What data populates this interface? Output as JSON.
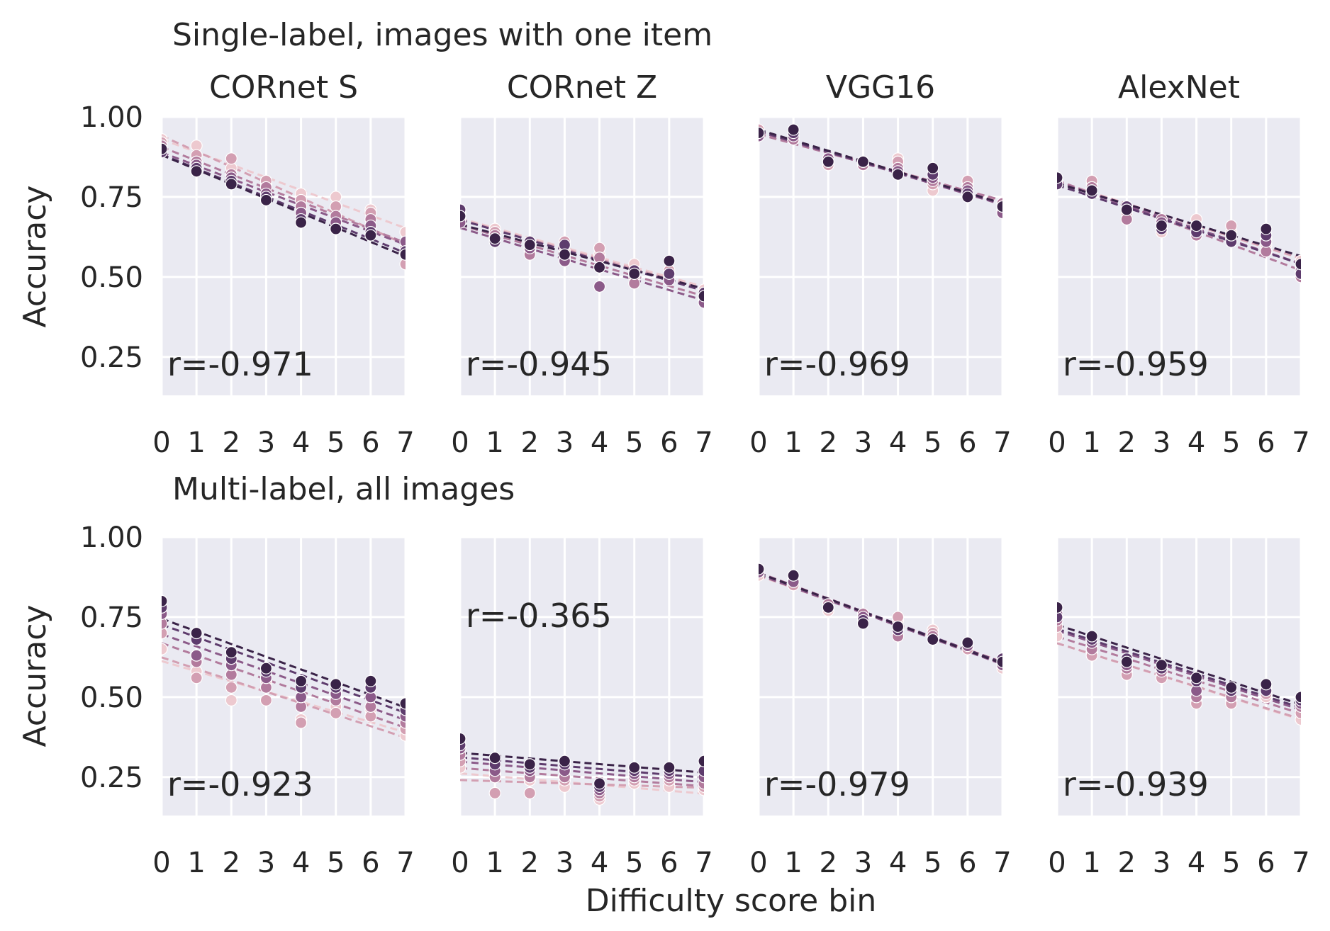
{
  "figure": {
    "xlabel": "Difficulty score bin",
    "ylabel": "Accuracy",
    "row_titles": [
      "Single-label, images with one item",
      "Multi-label, all images"
    ],
    "col_titles": [
      "CORnet S",
      "CORnet Z",
      "VGG16",
      "AlexNet"
    ]
  },
  "style": {
    "panel_bg": "#eaeaf2",
    "grid": "#ffffff",
    "text": "#262626",
    "series_colors": [
      "#edc9cf",
      "#d39fb2",
      "#b27b9d",
      "#8b5a89",
      "#5e3c6d",
      "#3a2348"
    ]
  },
  "chart_data": [
    {
      "type": "scatter",
      "row": 0,
      "col": 0,
      "model": "CORnet S",
      "annotation": "r=-0.971",
      "annotation_pos": "bottom",
      "x": [
        0,
        1,
        2,
        3,
        4,
        5,
        6,
        7
      ],
      "xlim": [
        0,
        7
      ],
      "ylim": [
        0.13,
        1.0
      ],
      "yticks": [
        "1.00",
        "0.75",
        "0.50",
        "0.25"
      ],
      "xticks": [
        "0",
        "1",
        "2",
        "3",
        "4",
        "5",
        "6",
        "7"
      ],
      "series": [
        {
          "values": [
            0.93,
            0.91,
            0.84,
            0.79,
            0.76,
            0.75,
            0.71,
            0.64
          ]
        },
        {
          "values": [
            0.92,
            0.88,
            0.87,
            0.8,
            0.74,
            0.72,
            0.7,
            0.54
          ]
        },
        {
          "values": [
            0.91,
            0.86,
            0.82,
            0.78,
            0.72,
            0.69,
            0.68,
            0.59
          ]
        },
        {
          "values": [
            0.9,
            0.85,
            0.81,
            0.76,
            0.7,
            0.67,
            0.66,
            0.61
          ]
        },
        {
          "values": [
            0.89,
            0.84,
            0.8,
            0.75,
            0.68,
            0.65,
            0.64,
            0.58
          ]
        },
        {
          "values": [
            0.9,
            0.83,
            0.79,
            0.74,
            0.67,
            0.65,
            0.63,
            0.57
          ]
        }
      ]
    },
    {
      "type": "scatter",
      "row": 0,
      "col": 1,
      "model": "CORnet Z",
      "annotation": "r=-0.945",
      "annotation_pos": "bottom",
      "x": [
        0,
        1,
        2,
        3,
        4,
        5,
        6,
        7
      ],
      "xlim": [
        0,
        7
      ],
      "ylim": [
        0.13,
        1.0
      ],
      "yticks": [
        "1.00",
        "0.75",
        "0.50",
        "0.25"
      ],
      "xticks": [
        "0",
        "1",
        "2",
        "3",
        "4",
        "5",
        "6",
        "7"
      ],
      "series": [
        {
          "values": [
            0.7,
            0.65,
            0.6,
            0.58,
            0.57,
            0.54,
            0.51,
            0.46
          ]
        },
        {
          "values": [
            0.69,
            0.64,
            0.58,
            0.61,
            0.59,
            0.5,
            0.52,
            0.44
          ]
        },
        {
          "values": [
            0.68,
            0.63,
            0.57,
            0.56,
            0.56,
            0.48,
            0.5,
            0.43
          ]
        },
        {
          "values": [
            0.67,
            0.62,
            0.59,
            0.55,
            0.47,
            0.51,
            0.49,
            0.42
          ]
        },
        {
          "values": [
            0.71,
            0.61,
            0.61,
            0.6,
            0.53,
            0.52,
            0.51,
            0.45
          ]
        },
        {
          "values": [
            0.69,
            0.62,
            0.6,
            0.57,
            0.53,
            0.51,
            0.55,
            0.44
          ]
        }
      ]
    },
    {
      "type": "scatter",
      "row": 0,
      "col": 2,
      "model": "VGG16",
      "annotation": "r=-0.969",
      "annotation_pos": "bottom",
      "x": [
        0,
        1,
        2,
        3,
        4,
        5,
        6,
        7
      ],
      "xlim": [
        0,
        7
      ],
      "ylim": [
        0.13,
        1.0
      ],
      "yticks": [
        "1.00",
        "0.75",
        "0.50",
        "0.25"
      ],
      "xticks": [
        "0",
        "1",
        "2",
        "3",
        "4",
        "5",
        "6",
        "7"
      ],
      "series": [
        {
          "values": [
            0.95,
            0.94,
            0.86,
            0.85,
            0.87,
            0.77,
            0.79,
            0.72
          ]
        },
        {
          "values": [
            0.96,
            0.93,
            0.85,
            0.86,
            0.86,
            0.79,
            0.8,
            0.71
          ]
        },
        {
          "values": [
            0.95,
            0.93,
            0.86,
            0.85,
            0.84,
            0.8,
            0.78,
            0.73
          ]
        },
        {
          "values": [
            0.94,
            0.94,
            0.87,
            0.86,
            0.83,
            0.81,
            0.77,
            0.7
          ]
        },
        {
          "values": [
            0.95,
            0.95,
            0.86,
            0.86,
            0.82,
            0.82,
            0.76,
            0.72
          ]
        },
        {
          "values": [
            0.95,
            0.96,
            0.86,
            0.86,
            0.82,
            0.84,
            0.75,
            0.72
          ]
        }
      ]
    },
    {
      "type": "scatter",
      "row": 0,
      "col": 3,
      "model": "AlexNet",
      "annotation": "r=-0.959",
      "annotation_pos": "bottom",
      "x": [
        0,
        1,
        2,
        3,
        4,
        5,
        6,
        7
      ],
      "xlim": [
        0,
        7
      ],
      "ylim": [
        0.13,
        1.0
      ],
      "yticks": [
        "1.00",
        "0.75",
        "0.50",
        "0.25"
      ],
      "xticks": [
        "0",
        "1",
        "2",
        "3",
        "4",
        "5",
        "6",
        "7"
      ],
      "series": [
        {
          "values": [
            0.8,
            0.79,
            0.72,
            0.64,
            0.68,
            0.64,
            0.6,
            0.55
          ]
        },
        {
          "values": [
            0.79,
            0.8,
            0.7,
            0.66,
            0.66,
            0.66,
            0.62,
            0.53
          ]
        },
        {
          "values": [
            0.81,
            0.78,
            0.68,
            0.68,
            0.63,
            0.63,
            0.58,
            0.5
          ]
        },
        {
          "values": [
            0.8,
            0.77,
            0.71,
            0.67,
            0.65,
            0.62,
            0.61,
            0.52
          ]
        },
        {
          "values": [
            0.79,
            0.76,
            0.72,
            0.65,
            0.64,
            0.61,
            0.63,
            0.51
          ]
        },
        {
          "values": [
            0.81,
            0.77,
            0.71,
            0.66,
            0.66,
            0.63,
            0.65,
            0.54
          ]
        }
      ]
    },
    {
      "type": "scatter",
      "row": 1,
      "col": 0,
      "model": "CORnet S",
      "annotation": "r=-0.923",
      "annotation_pos": "bottom",
      "x": [
        0,
        1,
        2,
        3,
        4,
        5,
        6,
        7
      ],
      "xlim": [
        0,
        7
      ],
      "ylim": [
        0.13,
        1.0
      ],
      "yticks": [
        "1.00",
        "0.75",
        "0.50",
        "0.25"
      ],
      "xticks": [
        "0",
        "1",
        "2",
        "3",
        "4",
        "5",
        "6",
        "7"
      ],
      "series": [
        {
          "values": [
            0.65,
            0.58,
            0.49,
            0.55,
            0.43,
            0.47,
            0.46,
            0.38
          ]
        },
        {
          "values": [
            0.7,
            0.56,
            0.53,
            0.49,
            0.42,
            0.45,
            0.44,
            0.4
          ]
        },
        {
          "values": [
            0.73,
            0.61,
            0.57,
            0.53,
            0.47,
            0.49,
            0.47,
            0.42
          ]
        },
        {
          "values": [
            0.76,
            0.63,
            0.6,
            0.56,
            0.5,
            0.51,
            0.5,
            0.44
          ]
        },
        {
          "values": [
            0.78,
            0.68,
            0.62,
            0.58,
            0.53,
            0.53,
            0.53,
            0.46
          ]
        },
        {
          "values": [
            0.8,
            0.7,
            0.64,
            0.59,
            0.55,
            0.54,
            0.55,
            0.48
          ]
        }
      ]
    },
    {
      "type": "scatter",
      "row": 1,
      "col": 1,
      "model": "CORnet Z",
      "annotation": "r=-0.365",
      "annotation_pos": "top",
      "x": [
        0,
        1,
        2,
        3,
        4,
        5,
        6,
        7
      ],
      "xlim": [
        0,
        7
      ],
      "ylim": [
        0.13,
        1.0
      ],
      "yticks": [
        "1.00",
        "0.75",
        "0.50",
        "0.25"
      ],
      "xticks": [
        "0",
        "1",
        "2",
        "3",
        "4",
        "5",
        "6",
        "7"
      ],
      "series": [
        {
          "values": [
            0.28,
            0.26,
            0.24,
            0.22,
            0.18,
            0.23,
            0.22,
            0.21
          ]
        },
        {
          "values": [
            0.3,
            0.2,
            0.2,
            0.24,
            0.19,
            0.24,
            0.24,
            0.22
          ]
        },
        {
          "values": [
            0.32,
            0.25,
            0.25,
            0.25,
            0.2,
            0.25,
            0.25,
            0.23
          ]
        },
        {
          "values": [
            0.34,
            0.27,
            0.27,
            0.27,
            0.21,
            0.26,
            0.26,
            0.25
          ]
        },
        {
          "values": [
            0.35,
            0.29,
            0.28,
            0.29,
            0.22,
            0.27,
            0.27,
            0.27
          ]
        },
        {
          "values": [
            0.37,
            0.31,
            0.29,
            0.3,
            0.23,
            0.28,
            0.28,
            0.3
          ]
        }
      ]
    },
    {
      "type": "scatter",
      "row": 1,
      "col": 2,
      "model": "VGG16",
      "annotation": "r=-0.979",
      "annotation_pos": "bottom",
      "x": [
        0,
        1,
        2,
        3,
        4,
        5,
        6,
        7
      ],
      "xlim": [
        0,
        7
      ],
      "ylim": [
        0.13,
        1.0
      ],
      "yticks": [
        "1.00",
        "0.75",
        "0.50",
        "0.25"
      ],
      "xticks": [
        "0",
        "1",
        "2",
        "3",
        "4",
        "5",
        "6",
        "7"
      ],
      "series": [
        {
          "values": [
            0.88,
            0.86,
            0.77,
            0.75,
            0.74,
            0.71,
            0.66,
            0.59
          ]
        },
        {
          "values": [
            0.89,
            0.85,
            0.78,
            0.74,
            0.75,
            0.7,
            0.65,
            0.6
          ]
        },
        {
          "values": [
            0.9,
            0.87,
            0.79,
            0.76,
            0.69,
            0.69,
            0.67,
            0.61
          ]
        },
        {
          "values": [
            0.89,
            0.86,
            0.78,
            0.75,
            0.72,
            0.68,
            0.66,
            0.6
          ]
        },
        {
          "values": [
            0.9,
            0.88,
            0.78,
            0.74,
            0.71,
            0.68,
            0.67,
            0.62
          ]
        },
        {
          "values": [
            0.9,
            0.88,
            0.78,
            0.73,
            0.72,
            0.68,
            0.67,
            0.61
          ]
        }
      ]
    },
    {
      "type": "scatter",
      "row": 1,
      "col": 3,
      "model": "AlexNet",
      "annotation": "r=-0.939",
      "annotation_pos": "bottom",
      "x": [
        0,
        1,
        2,
        3,
        4,
        5,
        6,
        7
      ],
      "xlim": [
        0,
        7
      ],
      "ylim": [
        0.13,
        1.0
      ],
      "yticks": [
        "1.00",
        "0.75",
        "0.50",
        "0.25"
      ],
      "xticks": [
        "0",
        "1",
        "2",
        "3",
        "4",
        "5",
        "6",
        "7"
      ],
      "series": [
        {
          "values": [
            0.69,
            0.64,
            0.58,
            0.57,
            0.49,
            0.49,
            0.5,
            0.43
          ]
        },
        {
          "values": [
            0.72,
            0.63,
            0.57,
            0.56,
            0.48,
            0.48,
            0.51,
            0.45
          ]
        },
        {
          "values": [
            0.74,
            0.65,
            0.59,
            0.58,
            0.5,
            0.5,
            0.52,
            0.47
          ]
        },
        {
          "values": [
            0.76,
            0.67,
            0.6,
            0.59,
            0.52,
            0.52,
            0.53,
            0.48
          ]
        },
        {
          "values": [
            0.75,
            0.68,
            0.62,
            0.59,
            0.55,
            0.52,
            0.52,
            0.49
          ]
        },
        {
          "values": [
            0.78,
            0.69,
            0.61,
            0.6,
            0.56,
            0.53,
            0.54,
            0.5
          ]
        }
      ]
    }
  ]
}
